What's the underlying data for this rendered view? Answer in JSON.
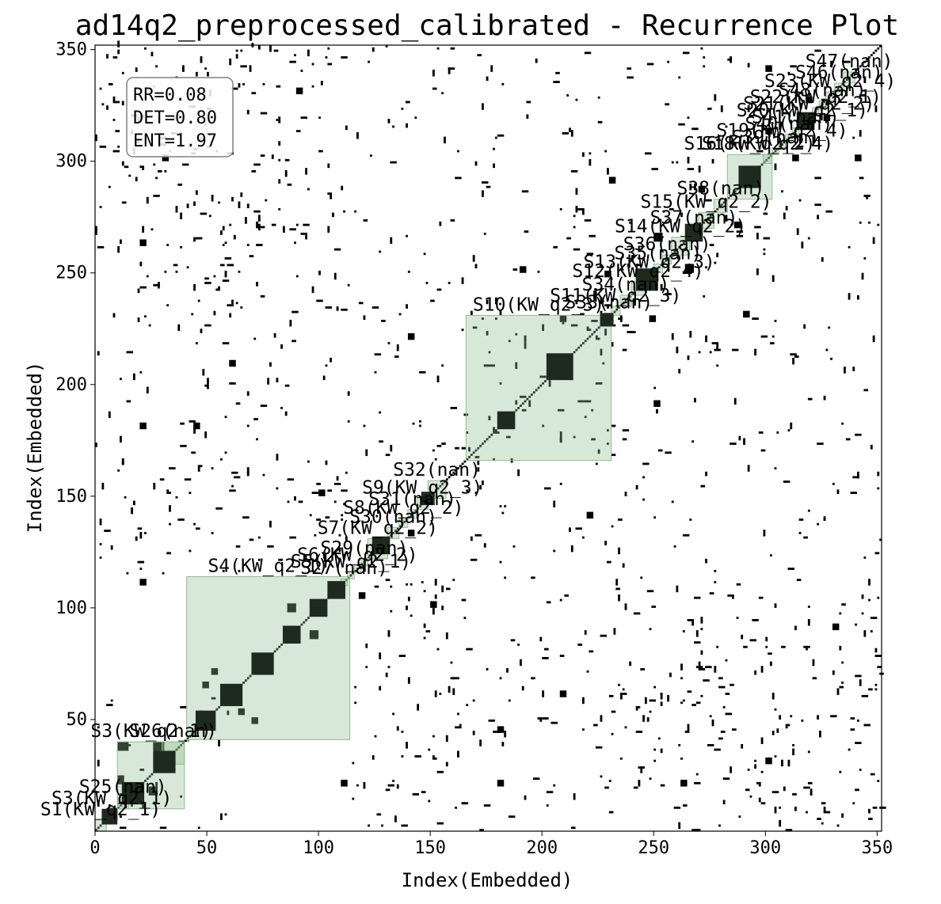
{
  "chart_data": {
    "type": "heatmap",
    "subtype": "recurrence_plot",
    "title": "ad14q2_preprocessed_calibrated - Recurrence Plot",
    "xlabel": "Index(Embedded)",
    "ylabel": "Index(Embedded)",
    "xlim": [
      0,
      352
    ],
    "ylim": [
      0,
      352
    ],
    "xticks": [
      0,
      50,
      100,
      150,
      200,
      250,
      300,
      350
    ],
    "yticks": [
      50,
      100,
      150,
      200,
      250,
      300,
      350
    ],
    "grid": false,
    "colormap": "binary",
    "stats_box": {
      "position": "top-left",
      "lines": [
        "RR=0.08",
        "DET=0.80",
        "ENT=1.97"
      ]
    },
    "segment_box_color": "#8fbc8f",
    "segments": [
      {
        "label": "S1(KW_q2_1)",
        "start": 0,
        "end": 5
      },
      {
        "label": "S3(KW_q2_1)",
        "start": 5,
        "end": 10
      },
      {
        "label": "S25(nan)",
        "start": 10,
        "end": 15
      },
      {
        "label": "S3(KW_q2_1)",
        "start": 10,
        "end": 40
      },
      {
        "label": "S26(nan)",
        "start": 30,
        "end": 40
      },
      {
        "label": "S4(KW_q2_1)",
        "start": 41,
        "end": 114
      },
      {
        "label": "S27(nan)",
        "start": 110,
        "end": 113
      },
      {
        "label": "S5(KW_q2_1)",
        "start": 113,
        "end": 116
      },
      {
        "label": "S6(KW_q2_2)",
        "start": 116,
        "end": 119
      },
      {
        "label": "S29(nan)",
        "start": 119,
        "end": 122
      },
      {
        "label": "S7(KW_q2_2)",
        "start": 122,
        "end": 131
      },
      {
        "label": "S30(nan)",
        "start": 131,
        "end": 136
      },
      {
        "label": "S8(KW_q2_2)",
        "start": 136,
        "end": 140
      },
      {
        "label": "S31(nan)",
        "start": 140,
        "end": 144
      },
      {
        "label": "S9(KW_q2_3)",
        "start": 144,
        "end": 149
      },
      {
        "label": "S32(nan)",
        "start": 149,
        "end": 157
      },
      {
        "label": "S10(KW_q2_3)",
        "start": 166,
        "end": 231
      },
      {
        "label": "S11(KW_q2_3)",
        "start": 231,
        "end": 235
      },
      {
        "label": "S33(nan)",
        "start": 228,
        "end": 232
      },
      {
        "label": "S34(nan)",
        "start": 235,
        "end": 240
      },
      {
        "label": "S12(KW_q2_4)",
        "start": 240,
        "end": 246
      },
      {
        "label": "S13(KW_q2_3)",
        "start": 246,
        "end": 250
      },
      {
        "label": "S35(nan)",
        "start": 250,
        "end": 254
      },
      {
        "label": "S36(nan)",
        "start": 254,
        "end": 258
      },
      {
        "label": "S14(KW_q2_2)",
        "start": 258,
        "end": 266
      },
      {
        "label": "S37(nan)",
        "start": 266,
        "end": 270
      },
      {
        "label": "S15(KW_q2_2)",
        "start": 270,
        "end": 277
      },
      {
        "label": "S38(nan)",
        "start": 277,
        "end": 283
      },
      {
        "label": "S16(KW_q2_2)",
        "start": 283,
        "end": 303
      },
      {
        "label": "S18(KW_q2_4)",
        "start": 299,
        "end": 303
      },
      {
        "label": "S39(nan)",
        "start": 303,
        "end": 306
      },
      {
        "label": "S19(KW_q2_4)",
        "start": 306,
        "end": 309
      },
      {
        "label": "S40(nan)",
        "start": 309,
        "end": 312
      },
      {
        "label": "S41(nan)",
        "start": 312,
        "end": 315
      },
      {
        "label": "S20(KW_q2_1)",
        "start": 315,
        "end": 318
      },
      {
        "label": "S21(KW_q2_2)",
        "start": 318,
        "end": 321
      },
      {
        "label": "S22(KW_q2_1)",
        "start": 321,
        "end": 324
      },
      {
        "label": "S43(nan)",
        "start": 324,
        "end": 327
      },
      {
        "label": "S23(KW_q2_4)",
        "start": 327,
        "end": 331
      },
      {
        "label": "S46(nan)",
        "start": 331,
        "end": 335
      },
      {
        "label": "S47(nan)",
        "start": 335,
        "end": 340
      }
    ],
    "diagonal_blocks": [
      {
        "start": 3,
        "end": 10
      },
      {
        "start": 12,
        "end": 22
      },
      {
        "start": 26,
        "end": 36
      },
      {
        "start": 45,
        "end": 54
      },
      {
        "start": 56,
        "end": 66
      },
      {
        "start": 70,
        "end": 80
      },
      {
        "start": 84,
        "end": 92
      },
      {
        "start": 96,
        "end": 104
      },
      {
        "start": 104,
        "end": 112
      },
      {
        "start": 124,
        "end": 132
      },
      {
        "start": 146,
        "end": 152
      },
      {
        "start": 180,
        "end": 188
      },
      {
        "start": 202,
        "end": 214
      },
      {
        "start": 226,
        "end": 232
      },
      {
        "start": 242,
        "end": 252
      },
      {
        "start": 264,
        "end": 272
      },
      {
        "start": 288,
        "end": 298
      },
      {
        "start": 314,
        "end": 322
      }
    ],
    "off_diagonal_blocks": [
      [
        10,
        36,
        5,
        4
      ],
      [
        26,
        36,
        5,
        4
      ],
      [
        24,
        16,
        4,
        4
      ],
      [
        10,
        22,
        3,
        3
      ],
      [
        48,
        64,
        3,
        3
      ],
      [
        52,
        70,
        3,
        3
      ],
      [
        60,
        60,
        3,
        3
      ],
      [
        70,
        48,
        3,
        3
      ],
      [
        64,
        52,
        3,
        3
      ],
      [
        86,
        98,
        4,
        4
      ],
      [
        96,
        86,
        4,
        4
      ],
      [
        118,
        104,
        3,
        3
      ],
      [
        140,
        132,
        3,
        3
      ],
      [
        208,
        228,
        3,
        3
      ],
      [
        248,
        228,
        3,
        3
      ],
      [
        228,
        248,
        3,
        3
      ],
      [
        264,
        250,
        4,
        4
      ],
      [
        250,
        264,
        4,
        4
      ],
      [
        270,
        286,
        3,
        3
      ],
      [
        286,
        270,
        3,
        3
      ],
      [
        300,
        312,
        3,
        3
      ],
      [
        312,
        300,
        3,
        3
      ],
      [
        318,
        326,
        3,
        3
      ],
      [
        326,
        318,
        3,
        3
      ],
      [
        208,
        60,
        3,
        3
      ],
      [
        60,
        208,
        3,
        3
      ],
      [
        300,
        30,
        3,
        3
      ],
      [
        30,
        300,
        3,
        3
      ],
      [
        250,
        190,
        3,
        3
      ],
      [
        190,
        250,
        3,
        3
      ],
      [
        150,
        100,
        3,
        3
      ],
      [
        100,
        150,
        3,
        3
      ],
      [
        180,
        20,
        3,
        3
      ],
      [
        20,
        180,
        3,
        3
      ],
      [
        330,
        90,
        3,
        3
      ],
      [
        90,
        330,
        3,
        3
      ],
      [
        262,
        20,
        3,
        3
      ],
      [
        20,
        262,
        3,
        3
      ],
      [
        220,
        140,
        3,
        3
      ],
      [
        140,
        220,
        3,
        3
      ],
      [
        290,
        230,
        3,
        3
      ],
      [
        230,
        290,
        3,
        3
      ],
      [
        340,
        300,
        3,
        3
      ],
      [
        300,
        340,
        3,
        3
      ],
      [
        44,
        180,
        3,
        3
      ],
      [
        180,
        44,
        3,
        3
      ],
      [
        110,
        20,
        3,
        3
      ],
      [
        20,
        110,
        3,
        3
      ]
    ],
    "scatter_regions": [
      {
        "x": [
          0,
          115
        ],
        "y": [
          115,
          352
        ]
      },
      {
        "x": [
          115,
          352
        ],
        "y": [
          0,
          115
        ]
      },
      {
        "x": [
          0,
          60
        ],
        "y": [
          0,
          60
        ]
      },
      {
        "x": [
          120,
          165
        ],
        "y": [
          0,
          115
        ]
      },
      {
        "x": [
          0,
          115
        ],
        "y": [
          120,
          165
        ]
      },
      {
        "x": [
          165,
          230
        ],
        "y": [
          120,
          230
        ]
      },
      {
        "x": [
          120,
          230
        ],
        "y": [
          165,
          230
        ]
      },
      {
        "x": [
          230,
          352
        ],
        "y": [
          0,
          230
        ]
      },
      {
        "x": [
          0,
          230
        ],
        "y": [
          230,
          352
        ]
      },
      {
        "x": [
          230,
          352
        ],
        "y": [
          230,
          352
        ]
      }
    ]
  }
}
